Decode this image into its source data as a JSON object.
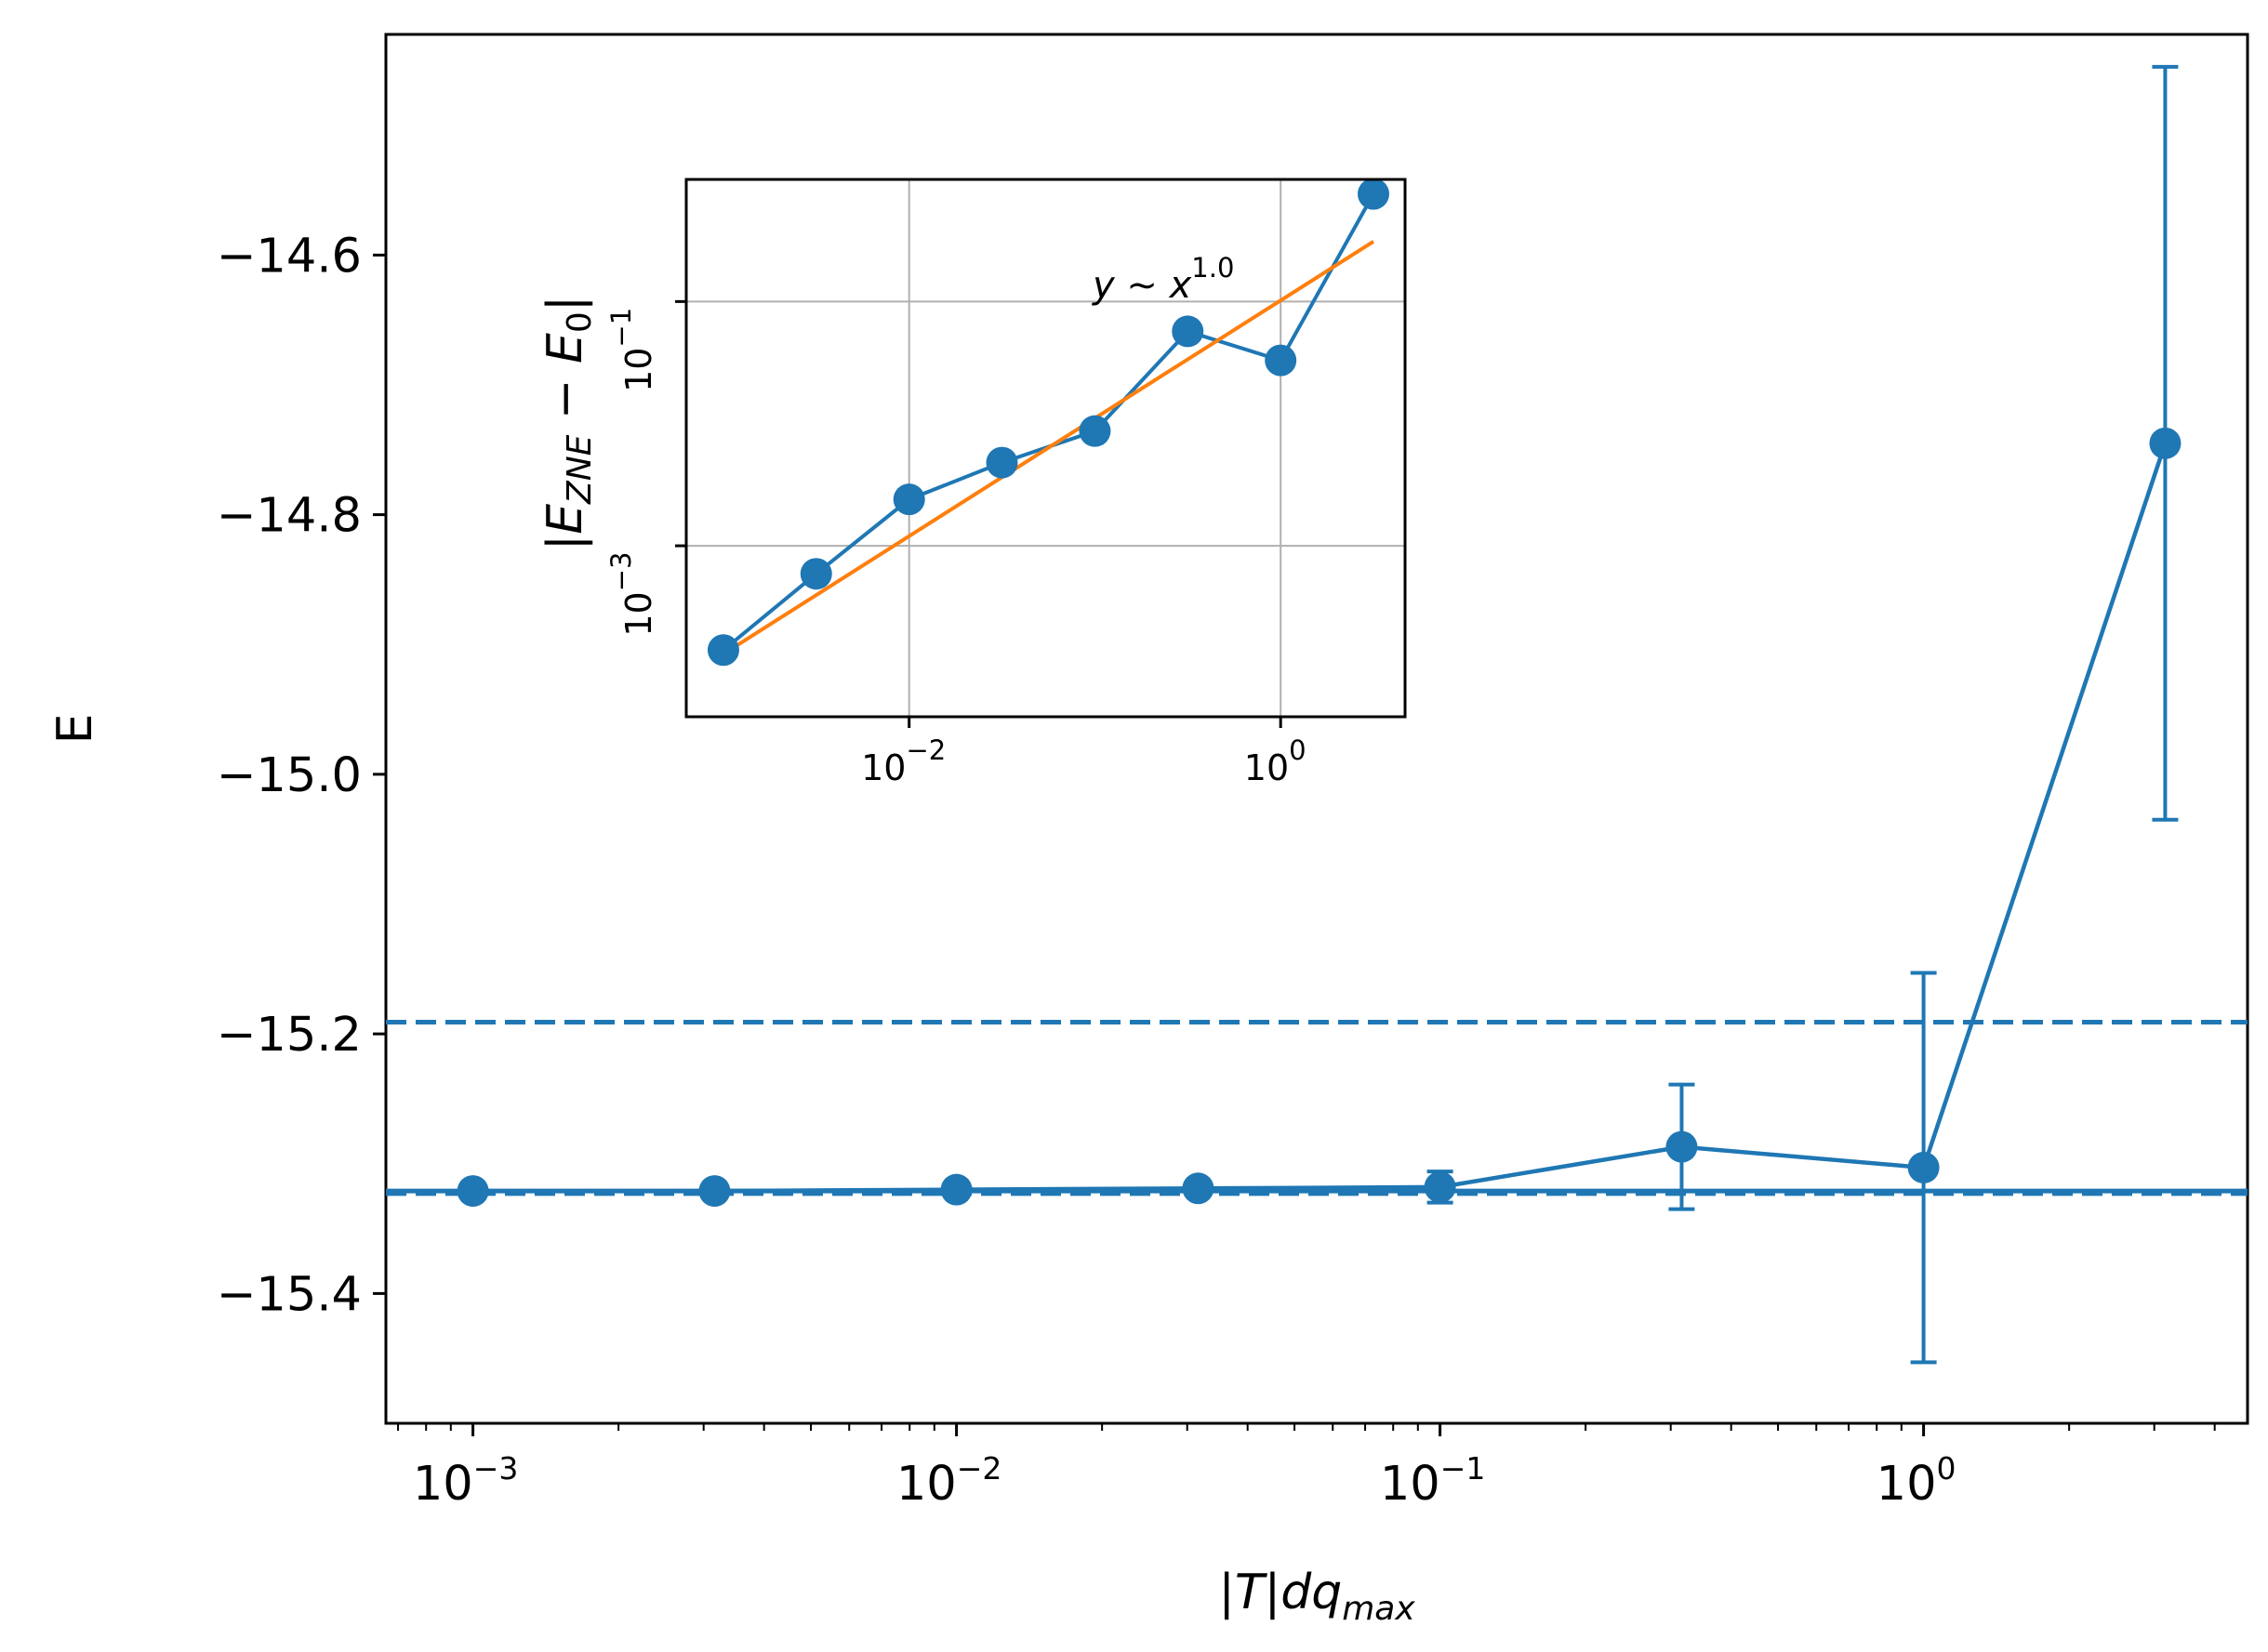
{
  "chart_data": [
    {
      "id": "main",
      "type": "line",
      "xscale": "log",
      "xlim_log10": [
        -3.18,
        0.67
      ],
      "ylim": [
        -15.5,
        -14.43
      ],
      "xlabel": {
        "a": "|",
        "b": "T",
        "c": "|",
        "d": "dq",
        "e": "max"
      },
      "ylabel": "E",
      "x_ticks": [
        {
          "value": 0.001,
          "base": "10",
          "exp": "−3"
        },
        {
          "value": 0.01,
          "base": "10",
          "exp": "−2"
        },
        {
          "value": 0.1,
          "base": "10",
          "exp": "−1"
        },
        {
          "value": 1,
          "base": "10",
          "exp": "0"
        }
      ],
      "y_ticks": [
        {
          "value": -14.6,
          "label": "−14.6"
        },
        {
          "value": -14.8,
          "label": "−14.8"
        },
        {
          "value": -15.0,
          "label": "−15.0"
        },
        {
          "value": -15.2,
          "label": "−15.2"
        },
        {
          "value": -15.4,
          "label": "−15.4"
        }
      ],
      "series": [
        {
          "name": "E",
          "color": "#1f77b4",
          "x": [
            0.001,
            0.00316,
            0.01,
            0.0316,
            0.1,
            0.316,
            1.0,
            3.16
          ],
          "y": [
            -15.321,
            -15.321,
            -15.32,
            -15.319,
            -15.318,
            -15.287,
            -15.303,
            -14.745
          ],
          "yerr": [
            0,
            0,
            0,
            0.002,
            0.012,
            0.048,
            0.15,
            0.29
          ]
        }
      ],
      "hlines": [
        {
          "name": "reference-solid",
          "y": -15.321,
          "style": "solid",
          "color": "#1f77b4"
        },
        {
          "name": "reference-dashed-upper",
          "y": -15.191,
          "style": "dashed",
          "color": "#1f77b4"
        },
        {
          "name": "reference-dashed-lower",
          "y": -15.323,
          "style": "dashed",
          "color": "#1f77b4"
        }
      ]
    },
    {
      "id": "inset",
      "type": "line",
      "xscale": "log",
      "yscale": "log",
      "xlim_log10": [
        -3.2,
        0.67
      ],
      "ylim_log10": [
        -4.4,
        0.0
      ],
      "grid": true,
      "ylabel": {
        "a": "|",
        "b": "E",
        "c": "ZNE",
        "d": " − ",
        "e": "E",
        "f": "0",
        "g": "|"
      },
      "x_ticks": [
        {
          "value": 0.01,
          "base": "10",
          "exp": "−2"
        },
        {
          "value": 1,
          "base": "10",
          "exp": "0"
        }
      ],
      "y_ticks": [
        {
          "value": 0.1,
          "base": "10",
          "exp": "−1"
        },
        {
          "value": 0.001,
          "base": "10",
          "exp": "−3"
        }
      ],
      "annotation": {
        "a": "y",
        "b": " ∼  ",
        "c": "x",
        "d": "1.0"
      },
      "series": [
        {
          "name": "|E_ZNE - E_0|",
          "color": "#1f77b4",
          "x": [
            0.001,
            0.00316,
            0.01,
            0.0316,
            0.1,
            0.316,
            1.0,
            3.16
          ],
          "y": [
            0.00014,
            0.00059,
            0.0024,
            0.0048,
            0.0087,
            0.057,
            0.033,
            0.76
          ]
        },
        {
          "name": "fit",
          "color": "#ff7f0e",
          "x": [
            0.001,
            3.16
          ],
          "y": [
            0.00013,
            0.31
          ]
        }
      ]
    }
  ]
}
